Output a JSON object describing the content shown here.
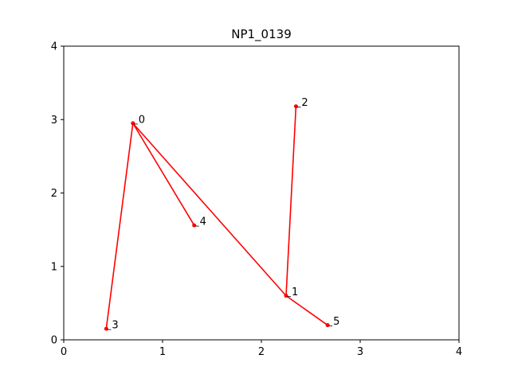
{
  "chart_data": {
    "type": "line",
    "title": "NP1_0139",
    "xlabel": "",
    "ylabel": "",
    "xlim": [
      0,
      4
    ],
    "ylim": [
      0,
      4
    ],
    "x_ticks": [
      "0",
      "1",
      "2",
      "3",
      "4"
    ],
    "y_ticks": [
      "0",
      "1",
      "2",
      "3",
      "4"
    ],
    "grid": false,
    "line_color": "#ff0000",
    "points": [
      {
        "label": "0",
        "x": 0.7,
        "y": 2.95
      },
      {
        "label": "1",
        "x": 2.25,
        "y": 0.6
      },
      {
        "label": "2",
        "x": 2.35,
        "y": 3.18
      },
      {
        "label": "3",
        "x": 0.43,
        "y": 0.15
      },
      {
        "label": "4",
        "x": 1.32,
        "y": 1.56
      },
      {
        "label": "5",
        "x": 2.67,
        "y": 0.2
      }
    ],
    "path_order": [
      "2",
      "1",
      "0",
      "3"
    ],
    "extra_edges": [
      [
        "0",
        "4"
      ],
      [
        "1",
        "5"
      ]
    ]
  }
}
